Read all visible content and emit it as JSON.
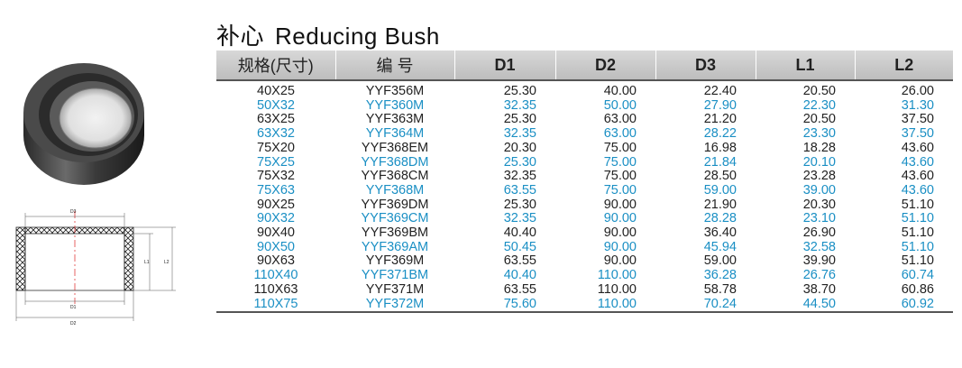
{
  "title": {
    "cn": "补心",
    "en": "Reducing Bush"
  },
  "headers": [
    "规格(尺寸)",
    "编 号",
    "D1",
    "D2",
    "D3",
    "L1",
    "L2"
  ],
  "drawing_labels": {
    "d3": "D3",
    "d1": "D1",
    "d2": "D2",
    "l1": "L1",
    "l2": "L2"
  },
  "colors": {
    "dark_text": "#222222",
    "blue_text": "#1a8fc4",
    "header_bg": "#c8c8c8"
  },
  "rows": [
    [
      "40X25",
      "YYF356M",
      "25.30",
      "40.00",
      "22.40",
      "20.50",
      "26.00"
    ],
    [
      "50X32",
      "YYF360M",
      "32.35",
      "50.00",
      "27.90",
      "22.30",
      "31.30"
    ],
    [
      "63X25",
      "YYF363M",
      "25.30",
      "63.00",
      "21.20",
      "20.50",
      "37.50"
    ],
    [
      "63X32",
      "YYF364M",
      "32.35",
      "63.00",
      "28.22",
      "23.30",
      "37.50"
    ],
    [
      "75X20",
      "YYF368EM",
      "20.30",
      "75.00",
      "16.98",
      "18.28",
      "43.60"
    ],
    [
      "75X25",
      "YYF368DM",
      "25.30",
      "75.00",
      "21.84",
      "20.10",
      "43.60"
    ],
    [
      "75X32",
      "YYF368CM",
      "32.35",
      "75.00",
      "28.50",
      "23.28",
      "43.60"
    ],
    [
      "75X63",
      "YYF368M",
      "63.55",
      "75.00",
      "59.00",
      "39.00",
      "43.60"
    ],
    [
      "90X25",
      "YYF369DM",
      "25.30",
      "90.00",
      "21.90",
      "20.30",
      "51.10"
    ],
    [
      "90X32",
      "YYF369CM",
      "32.35",
      "90.00",
      "28.28",
      "23.10",
      "51.10"
    ],
    [
      "90X40",
      "YYF369BM",
      "40.40",
      "90.00",
      "36.40",
      "26.90",
      "51.10"
    ],
    [
      "90X50",
      "YYF369AM",
      "50.45",
      "90.00",
      "45.94",
      "32.58",
      "51.10"
    ],
    [
      "90X63",
      "YYF369M",
      "63.55",
      "90.00",
      "59.00",
      "39.90",
      "51.10"
    ],
    [
      "110X40",
      "YYF371BM",
      "40.40",
      "110.00",
      "36.28",
      "26.76",
      "60.74"
    ],
    [
      "110X63",
      "YYF371M",
      "63.55",
      "110.00",
      "58.78",
      "38.70",
      "60.86"
    ],
    [
      "110X75",
      "YYF372M",
      "75.60",
      "110.00",
      "70.24",
      "44.50",
      "60.92"
    ]
  ]
}
